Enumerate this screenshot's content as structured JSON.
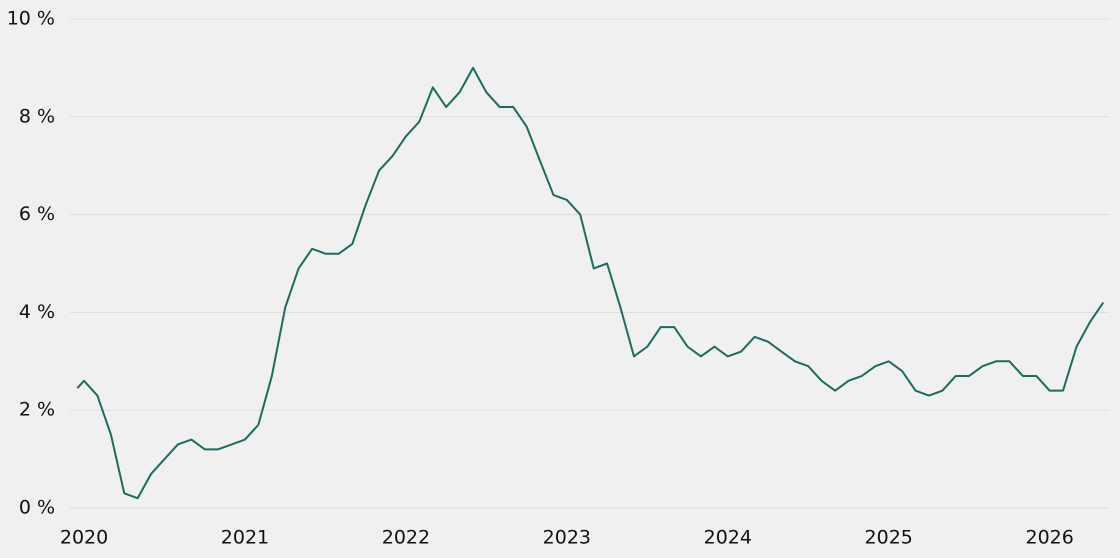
{
  "chart_data": {
    "type": "line",
    "x": [
      2019.958,
      2020,
      2020.083,
      2020.167,
      2020.25,
      2020.333,
      2020.417,
      2020.5,
      2020.583,
      2020.667,
      2020.75,
      2020.833,
      2020.917,
      2021,
      2021.083,
      2021.167,
      2021.25,
      2021.333,
      2021.417,
      2021.5,
      2021.583,
      2021.667,
      2021.75,
      2021.833,
      2021.917,
      2022,
      2022.083,
      2022.167,
      2022.25,
      2022.333,
      2022.417,
      2022.5,
      2022.583,
      2022.667,
      2022.75,
      2022.833,
      2022.917,
      2023,
      2023.083,
      2023.167,
      2023.25,
      2023.333,
      2023.417,
      2023.5,
      2023.583,
      2023.667,
      2023.75,
      2023.833,
      2023.917,
      2024,
      2024.083,
      2024.167,
      2024.25,
      2024.333,
      2024.417,
      2024.5,
      2024.583,
      2024.667,
      2024.75,
      2024.833,
      2024.917,
      2025,
      2025.083,
      2025.167,
      2025.25,
      2025.333,
      2025.417,
      2025.5,
      2025.583,
      2025.667,
      2025.75,
      2025.833,
      2025.917,
      2026,
      2026.083,
      2026.167,
      2026.25,
      2026.333
    ],
    "series": [
      {
        "color": "#1b6b61",
        "values": [
          2.45,
          2.6,
          2.3,
          1.5,
          0.3,
          0.2,
          0.7,
          1.0,
          1.3,
          1.4,
          1.2,
          1.2,
          1.3,
          1.4,
          1.7,
          2.7,
          4.1,
          4.9,
          5.3,
          5.2,
          5.2,
          5.4,
          6.2,
          6.9,
          7.2,
          7.6,
          7.9,
          8.6,
          8.2,
          8.5,
          9.0,
          8.5,
          8.2,
          8.2,
          7.8,
          7.1,
          6.4,
          6.3,
          6.0,
          4.9,
          5.0,
          4.1,
          3.1,
          3.3,
          3.7,
          3.7,
          3.3,
          3.1,
          3.3,
          3.1,
          3.2,
          3.5,
          3.4,
          3.2,
          3.0,
          2.9,
          2.6,
          2.4,
          2.6,
          2.7,
          2.9,
          3.0,
          2.8,
          2.4,
          2.3,
          2.4,
          2.7,
          2.7,
          2.9,
          3.0,
          3.0,
          2.7,
          2.7,
          2.4,
          2.4,
          3.3,
          3.8,
          4.2
        ]
      }
    ],
    "xlim": [
      2019.95,
      2026.35
    ],
    "xticks": [
      2020,
      2021,
      2022,
      2023,
      2024,
      2025,
      2026
    ],
    "ylim": [
      0,
      10
    ],
    "yticks": [
      {
        "value": 0,
        "label": "0 %"
      },
      {
        "value": 2,
        "label": "2 %"
      },
      {
        "value": 4,
        "label": "4 %"
      },
      {
        "value": 6,
        "label": "6 %"
      },
      {
        "value": 8,
        "label": "8 %"
      },
      {
        "value": 10,
        "label": "10 %"
      }
    ],
    "grid": true
  }
}
